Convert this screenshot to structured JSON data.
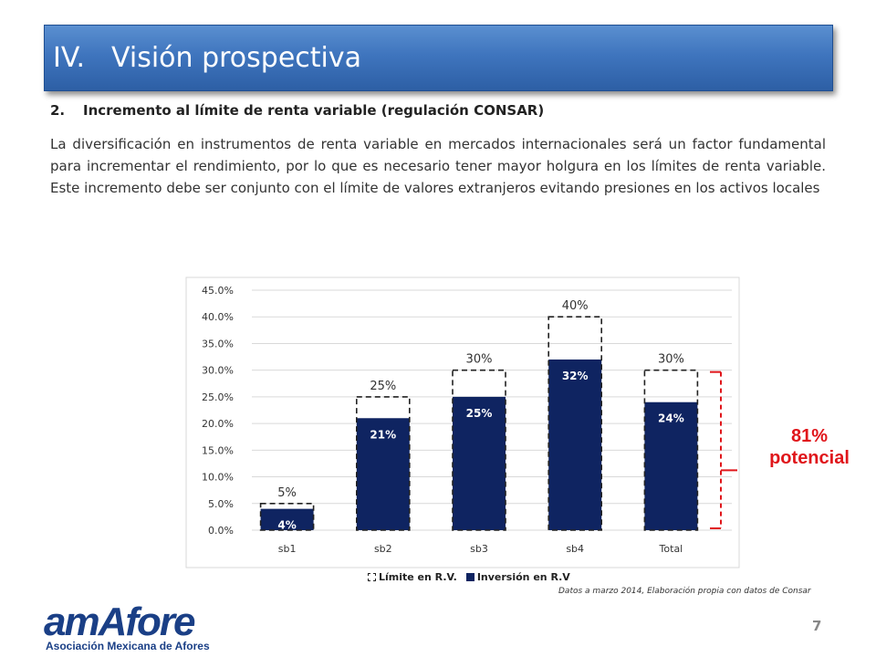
{
  "header": {
    "number": "IV.",
    "title": "Visión prospectiva"
  },
  "section": {
    "number": "2.",
    "heading": "Incremento al límite de renta variable (regulación CONSAR)",
    "paragraph": "La diversificación en instrumentos de renta variable en mercados internacionales será un factor fundamental para incrementar el rendimiento, por lo que es necesario tener mayor holgura en los límites de renta variable. Este incremento debe ser conjunto con el límite de valores extranjeros evitando presiones en los activos locales"
  },
  "chart_data": {
    "type": "bar",
    "categories": [
      "sb1",
      "sb2",
      "sb3",
      "sb4",
      "Total"
    ],
    "series": [
      {
        "name": "Límite en R.V.",
        "values": [
          5,
          25,
          30,
          40,
          30
        ],
        "labels": [
          "5%",
          "25%",
          "30%",
          "40%",
          "30%"
        ]
      },
      {
        "name": "Inversión en R.V",
        "values": [
          4,
          21,
          25,
          32,
          24
        ],
        "labels": [
          "4%",
          "21%",
          "25%",
          "32%",
          "24%"
        ]
      }
    ],
    "yticks": [
      "0.0%",
      "5.0%",
      "10.0%",
      "15.0%",
      "20.0%",
      "25.0%",
      "30.0%",
      "35.0%",
      "40.0%",
      "45.0%"
    ],
    "ylim": [
      0,
      45
    ],
    "grid": true,
    "legend_position": "bottom",
    "colors": {
      "invest": "#0f2461",
      "limit_stroke": "#222222",
      "grid": "#d9d9d9",
      "bracket": "#e0161b"
    }
  },
  "annotation": {
    "line1": "81%",
    "line2": "potencial"
  },
  "source": "Datos a marzo 2014, Elaboración propia con datos de Consar",
  "page_number": "7",
  "logo": {
    "word": "amAfore",
    "tagline": "Asociación Mexicana de Afores"
  }
}
